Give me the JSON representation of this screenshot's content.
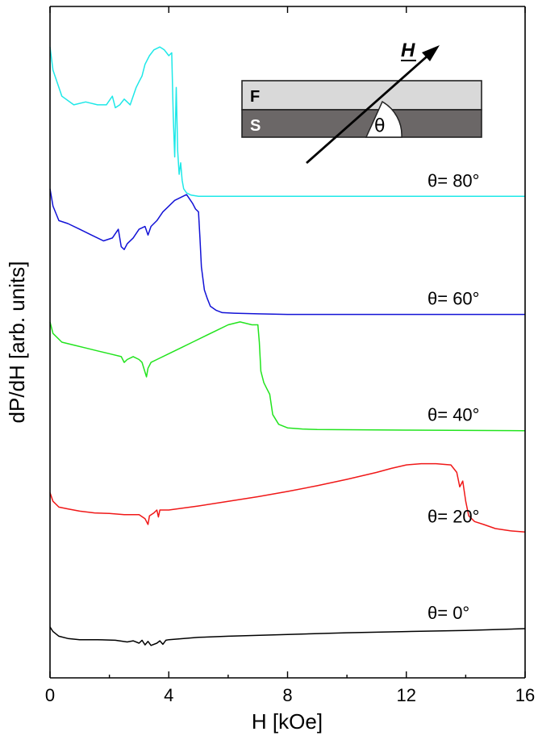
{
  "chart_data": {
    "type": "line",
    "xlabel": "H [kOe]",
    "ylabel": "dP/dH [arb. units]",
    "xlim": [
      0,
      16
    ],
    "xticks": [
      "0",
      "4",
      "8",
      "12",
      "16"
    ],
    "y_tick_labels": false,
    "series": [
      {
        "name": "θ= 80°",
        "color": "#1ee8e8",
        "x": [
          0.0,
          0.1,
          0.4,
          0.8,
          1.2,
          1.6,
          1.9,
          2.1,
          2.2,
          2.35,
          2.5,
          2.7,
          2.9,
          3.0,
          3.1,
          3.2,
          3.35,
          3.5,
          3.7,
          3.85,
          4.0,
          4.1,
          4.15,
          4.2,
          4.25,
          4.3,
          4.35,
          4.4,
          4.45,
          4.5,
          4.6,
          4.75,
          5.0,
          6.0,
          8.0,
          12.0,
          16.0
        ],
        "y": [
          10.3,
          9.9,
          9.45,
          9.3,
          9.35,
          9.3,
          9.3,
          9.45,
          9.25,
          9.3,
          9.4,
          9.3,
          9.6,
          9.7,
          9.8,
          10.0,
          10.15,
          10.25,
          10.3,
          10.25,
          10.15,
          10.2,
          9.1,
          8.4,
          9.6,
          8.5,
          8.1,
          8.3,
          8.0,
          7.85,
          7.78,
          7.74,
          7.72,
          7.72,
          7.72,
          7.72,
          7.72
        ]
      },
      {
        "name": "θ= 60°",
        "color": "#1212d6",
        "x": [
          0.0,
          0.1,
          0.3,
          0.6,
          1.0,
          1.4,
          1.8,
          2.1,
          2.3,
          2.4,
          2.5,
          2.6,
          2.8,
          3.0,
          3.2,
          3.3,
          3.4,
          3.6,
          3.8,
          4.0,
          4.2,
          4.4,
          4.6,
          4.8,
          4.9,
          5.0,
          5.05,
          5.1,
          5.2,
          5.3,
          5.4,
          5.6,
          5.8,
          6.2,
          7.0,
          8.0,
          12.0,
          16.0
        ],
        "y": [
          7.85,
          7.55,
          7.3,
          7.25,
          7.15,
          7.05,
          6.95,
          7.0,
          7.15,
          6.85,
          6.8,
          6.9,
          7.0,
          7.15,
          7.2,
          7.05,
          7.2,
          7.3,
          7.45,
          7.55,
          7.65,
          7.7,
          7.75,
          7.6,
          7.5,
          7.45,
          7.0,
          6.5,
          6.1,
          5.95,
          5.82,
          5.75,
          5.71,
          5.7,
          5.69,
          5.68,
          5.68,
          5.68
        ]
      },
      {
        "name": "θ= 40°",
        "color": "#22e41e",
        "x": [
          0.0,
          0.1,
          0.4,
          0.8,
          1.2,
          1.6,
          2.0,
          2.4,
          2.5,
          2.6,
          2.8,
          3.0,
          3.1,
          3.25,
          3.3,
          3.4,
          3.6,
          4.0,
          4.4,
          4.8,
          5.2,
          5.6,
          6.0,
          6.4,
          6.8,
          7.0,
          7.05,
          7.1,
          7.2,
          7.3,
          7.4,
          7.5,
          7.7,
          8.0,
          8.5,
          9.0,
          12.0,
          16.0
        ],
        "y": [
          5.55,
          5.35,
          5.2,
          5.15,
          5.1,
          5.05,
          5.0,
          4.95,
          4.85,
          4.9,
          4.95,
          4.9,
          4.85,
          4.6,
          4.75,
          4.85,
          4.9,
          5.0,
          5.1,
          5.2,
          5.3,
          5.4,
          5.5,
          5.55,
          5.5,
          5.5,
          5.2,
          4.7,
          4.5,
          4.4,
          4.3,
          3.95,
          3.78,
          3.72,
          3.7,
          3.69,
          3.68,
          3.67
        ]
      },
      {
        "name": "θ= 20°",
        "color": "#f01818",
        "x": [
          0.0,
          0.1,
          0.3,
          0.6,
          1.0,
          1.5,
          2.0,
          2.5,
          3.0,
          3.2,
          3.3,
          3.35,
          3.5,
          3.6,
          3.65,
          3.7,
          4.0,
          5.0,
          6.0,
          7.0,
          8.0,
          9.0,
          10.0,
          11.0,
          11.5,
          12.0,
          12.5,
          13.0,
          13.5,
          13.7,
          13.8,
          13.9,
          14.0,
          14.1,
          14.3,
          14.6,
          15.0,
          15.5,
          16.0
        ],
        "y": [
          2.6,
          2.45,
          2.35,
          2.32,
          2.28,
          2.25,
          2.24,
          2.22,
          2.22,
          2.15,
          2.05,
          2.2,
          2.25,
          2.3,
          2.18,
          2.3,
          2.3,
          2.37,
          2.45,
          2.53,
          2.62,
          2.72,
          2.83,
          2.95,
          3.02,
          3.08,
          3.1,
          3.1,
          3.08,
          2.95,
          2.7,
          2.8,
          2.45,
          2.2,
          2.1,
          2.05,
          1.98,
          1.94,
          1.92
        ]
      },
      {
        "name": "θ=  0°",
        "color": "#000000",
        "x": [
          0.0,
          0.1,
          0.3,
          0.6,
          1.0,
          1.6,
          2.2,
          2.6,
          2.8,
          3.0,
          3.1,
          3.2,
          3.3,
          3.4,
          3.6,
          3.7,
          3.8,
          3.9,
          4.0,
          4.5,
          5.0,
          6.0,
          8.0,
          10.0,
          12.0,
          14.0,
          16.0
        ],
        "y": [
          0.28,
          0.2,
          0.12,
          0.08,
          0.06,
          0.06,
          0.05,
          0.02,
          0.04,
          0.0,
          0.05,
          -0.03,
          0.03,
          -0.04,
          0.0,
          0.04,
          -0.02,
          0.05,
          0.06,
          0.08,
          0.1,
          0.12,
          0.15,
          0.18,
          0.2,
          0.22,
          0.25
        ]
      }
    ],
    "inset": {
      "layer_top": "F",
      "layer_bottom": "S",
      "field_label": "H",
      "angle_label": "θ",
      "colors": {
        "top_layer": "#d9d9d9",
        "bottom_layer": "#6b6767"
      }
    }
  }
}
